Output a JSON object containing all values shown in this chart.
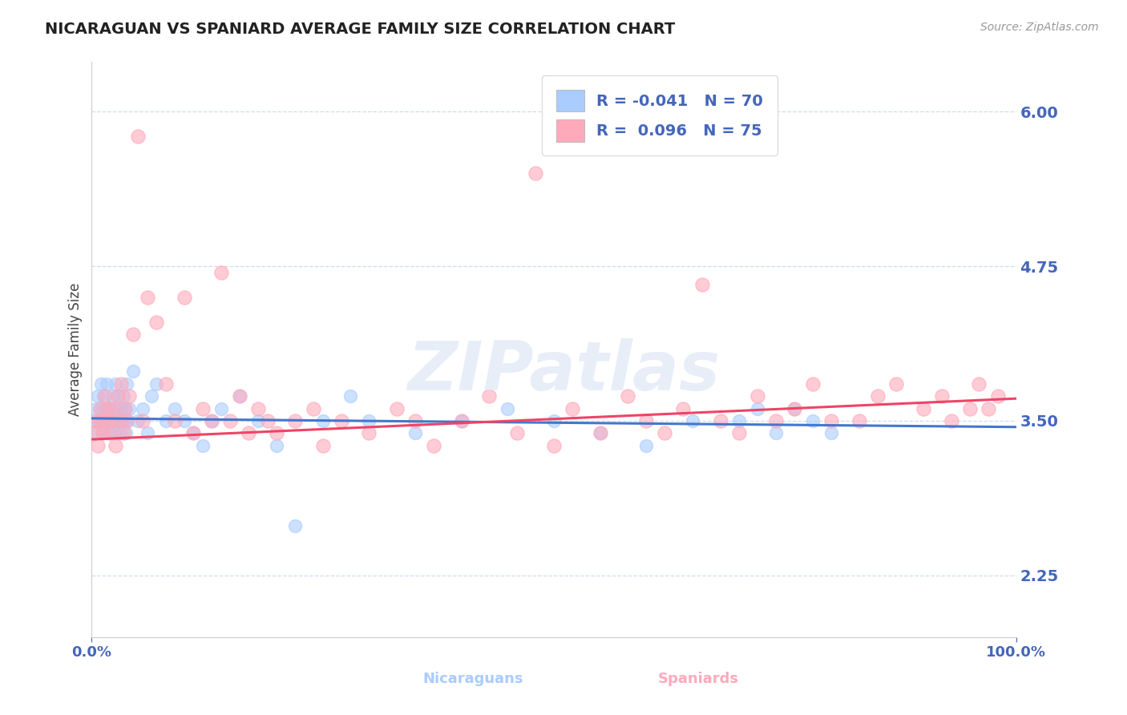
{
  "title": "NICARAGUAN VS SPANIARD AVERAGE FAMILY SIZE CORRELATION CHART",
  "source": "Source: ZipAtlas.com",
  "ylabel": "Average Family Size",
  "yticks": [
    2.25,
    3.5,
    4.75,
    6.0
  ],
  "ymin": 1.75,
  "ymax": 6.4,
  "xmin": 0.0,
  "xmax": 100.0,
  "color_nicaraguan": "#aaccff",
  "color_spaniard": "#ffaabb",
  "color_trendline_nic": "#4477cc",
  "color_trendline_spa": "#ee4466",
  "color_axis_labels": "#4466bb",
  "color_grid": "#ccddee",
  "color_title": "#222222",
  "R_nicaraguan": -0.041,
  "N_nicaraguan": 70,
  "R_spaniard": 0.096,
  "N_spaniard": 75,
  "nic_trend_start": 3.52,
  "nic_trend_end": 3.45,
  "spa_trend_start": 3.35,
  "spa_trend_end": 3.68,
  "watermark": "ZIPatlas",
  "nic_x": [
    0.4,
    0.5,
    0.6,
    0.7,
    0.8,
    0.9,
    1.0,
    1.1,
    1.2,
    1.3,
    1.4,
    1.5,
    1.6,
    1.7,
    1.8,
    1.9,
    2.0,
    2.1,
    2.2,
    2.3,
    2.4,
    2.5,
    2.6,
    2.7,
    2.8,
    2.9,
    3.0,
    3.1,
    3.2,
    3.3,
    3.4,
    3.5,
    3.6,
    3.7,
    3.8,
    3.9,
    4.0,
    4.5,
    5.0,
    5.5,
    6.0,
    6.5,
    7.0,
    8.0,
    9.0,
    10.0,
    11.0,
    12.0,
    13.0,
    14.0,
    16.0,
    18.0,
    20.0,
    22.0,
    25.0,
    28.0,
    30.0,
    35.0,
    40.0,
    45.0,
    50.0,
    55.0,
    60.0,
    65.0,
    70.0,
    72.0,
    74.0,
    76.0,
    78.0,
    80.0
  ],
  "nic_y": [
    3.5,
    3.6,
    3.4,
    3.7,
    3.5,
    3.6,
    3.8,
    3.5,
    3.4,
    3.7,
    3.6,
    3.5,
    3.8,
    3.6,
    3.5,
    3.4,
    3.6,
    3.5,
    3.7,
    3.5,
    3.6,
    3.4,
    3.8,
    3.5,
    3.6,
    3.7,
    3.5,
    3.4,
    3.6,
    3.5,
    3.7,
    3.5,
    3.6,
    3.4,
    3.8,
    3.5,
    3.6,
    3.9,
    3.5,
    3.6,
    3.4,
    3.7,
    3.8,
    3.5,
    3.6,
    3.5,
    3.4,
    3.3,
    3.5,
    3.6,
    3.7,
    3.5,
    3.3,
    2.65,
    3.5,
    3.7,
    3.5,
    3.4,
    3.5,
    3.6,
    3.5,
    3.4,
    3.3,
    3.5,
    3.5,
    3.6,
    3.4,
    3.6,
    3.5,
    3.4
  ],
  "spa_x": [
    0.3,
    0.5,
    0.7,
    0.9,
    1.0,
    1.2,
    1.4,
    1.6,
    1.8,
    2.0,
    2.2,
    2.4,
    2.6,
    2.8,
    3.0,
    3.2,
    3.4,
    3.6,
    3.8,
    4.0,
    4.5,
    5.0,
    5.5,
    6.0,
    7.0,
    8.0,
    9.0,
    10.0,
    11.0,
    12.0,
    13.0,
    14.0,
    15.0,
    16.0,
    17.0,
    18.0,
    19.0,
    20.0,
    22.0,
    24.0,
    25.0,
    27.0,
    30.0,
    33.0,
    35.0,
    37.0,
    40.0,
    43.0,
    46.0,
    48.0,
    50.0,
    52.0,
    55.0,
    58.0,
    60.0,
    62.0,
    64.0,
    66.0,
    68.0,
    70.0,
    72.0,
    74.0,
    76.0,
    78.0,
    80.0,
    83.0,
    85.0,
    87.0,
    90.0,
    92.0,
    93.0,
    95.0,
    96.0,
    97.0,
    98.0
  ],
  "spa_y": [
    3.4,
    3.5,
    3.3,
    3.6,
    3.5,
    3.4,
    3.7,
    3.5,
    3.6,
    3.4,
    3.5,
    3.6,
    3.3,
    3.7,
    3.5,
    3.8,
    3.4,
    3.6,
    3.5,
    3.7,
    4.2,
    5.8,
    3.5,
    4.5,
    4.3,
    3.8,
    3.5,
    4.5,
    3.4,
    3.6,
    3.5,
    4.7,
    3.5,
    3.7,
    3.4,
    3.6,
    3.5,
    3.4,
    3.5,
    3.6,
    3.3,
    3.5,
    3.4,
    3.6,
    3.5,
    3.3,
    3.5,
    3.7,
    3.4,
    5.5,
    3.3,
    3.6,
    3.4,
    3.7,
    3.5,
    3.4,
    3.6,
    4.6,
    3.5,
    3.4,
    3.7,
    3.5,
    3.6,
    3.8,
    3.5,
    3.5,
    3.7,
    3.8,
    3.6,
    3.7,
    3.5,
    3.6,
    3.8,
    3.6,
    3.7
  ]
}
